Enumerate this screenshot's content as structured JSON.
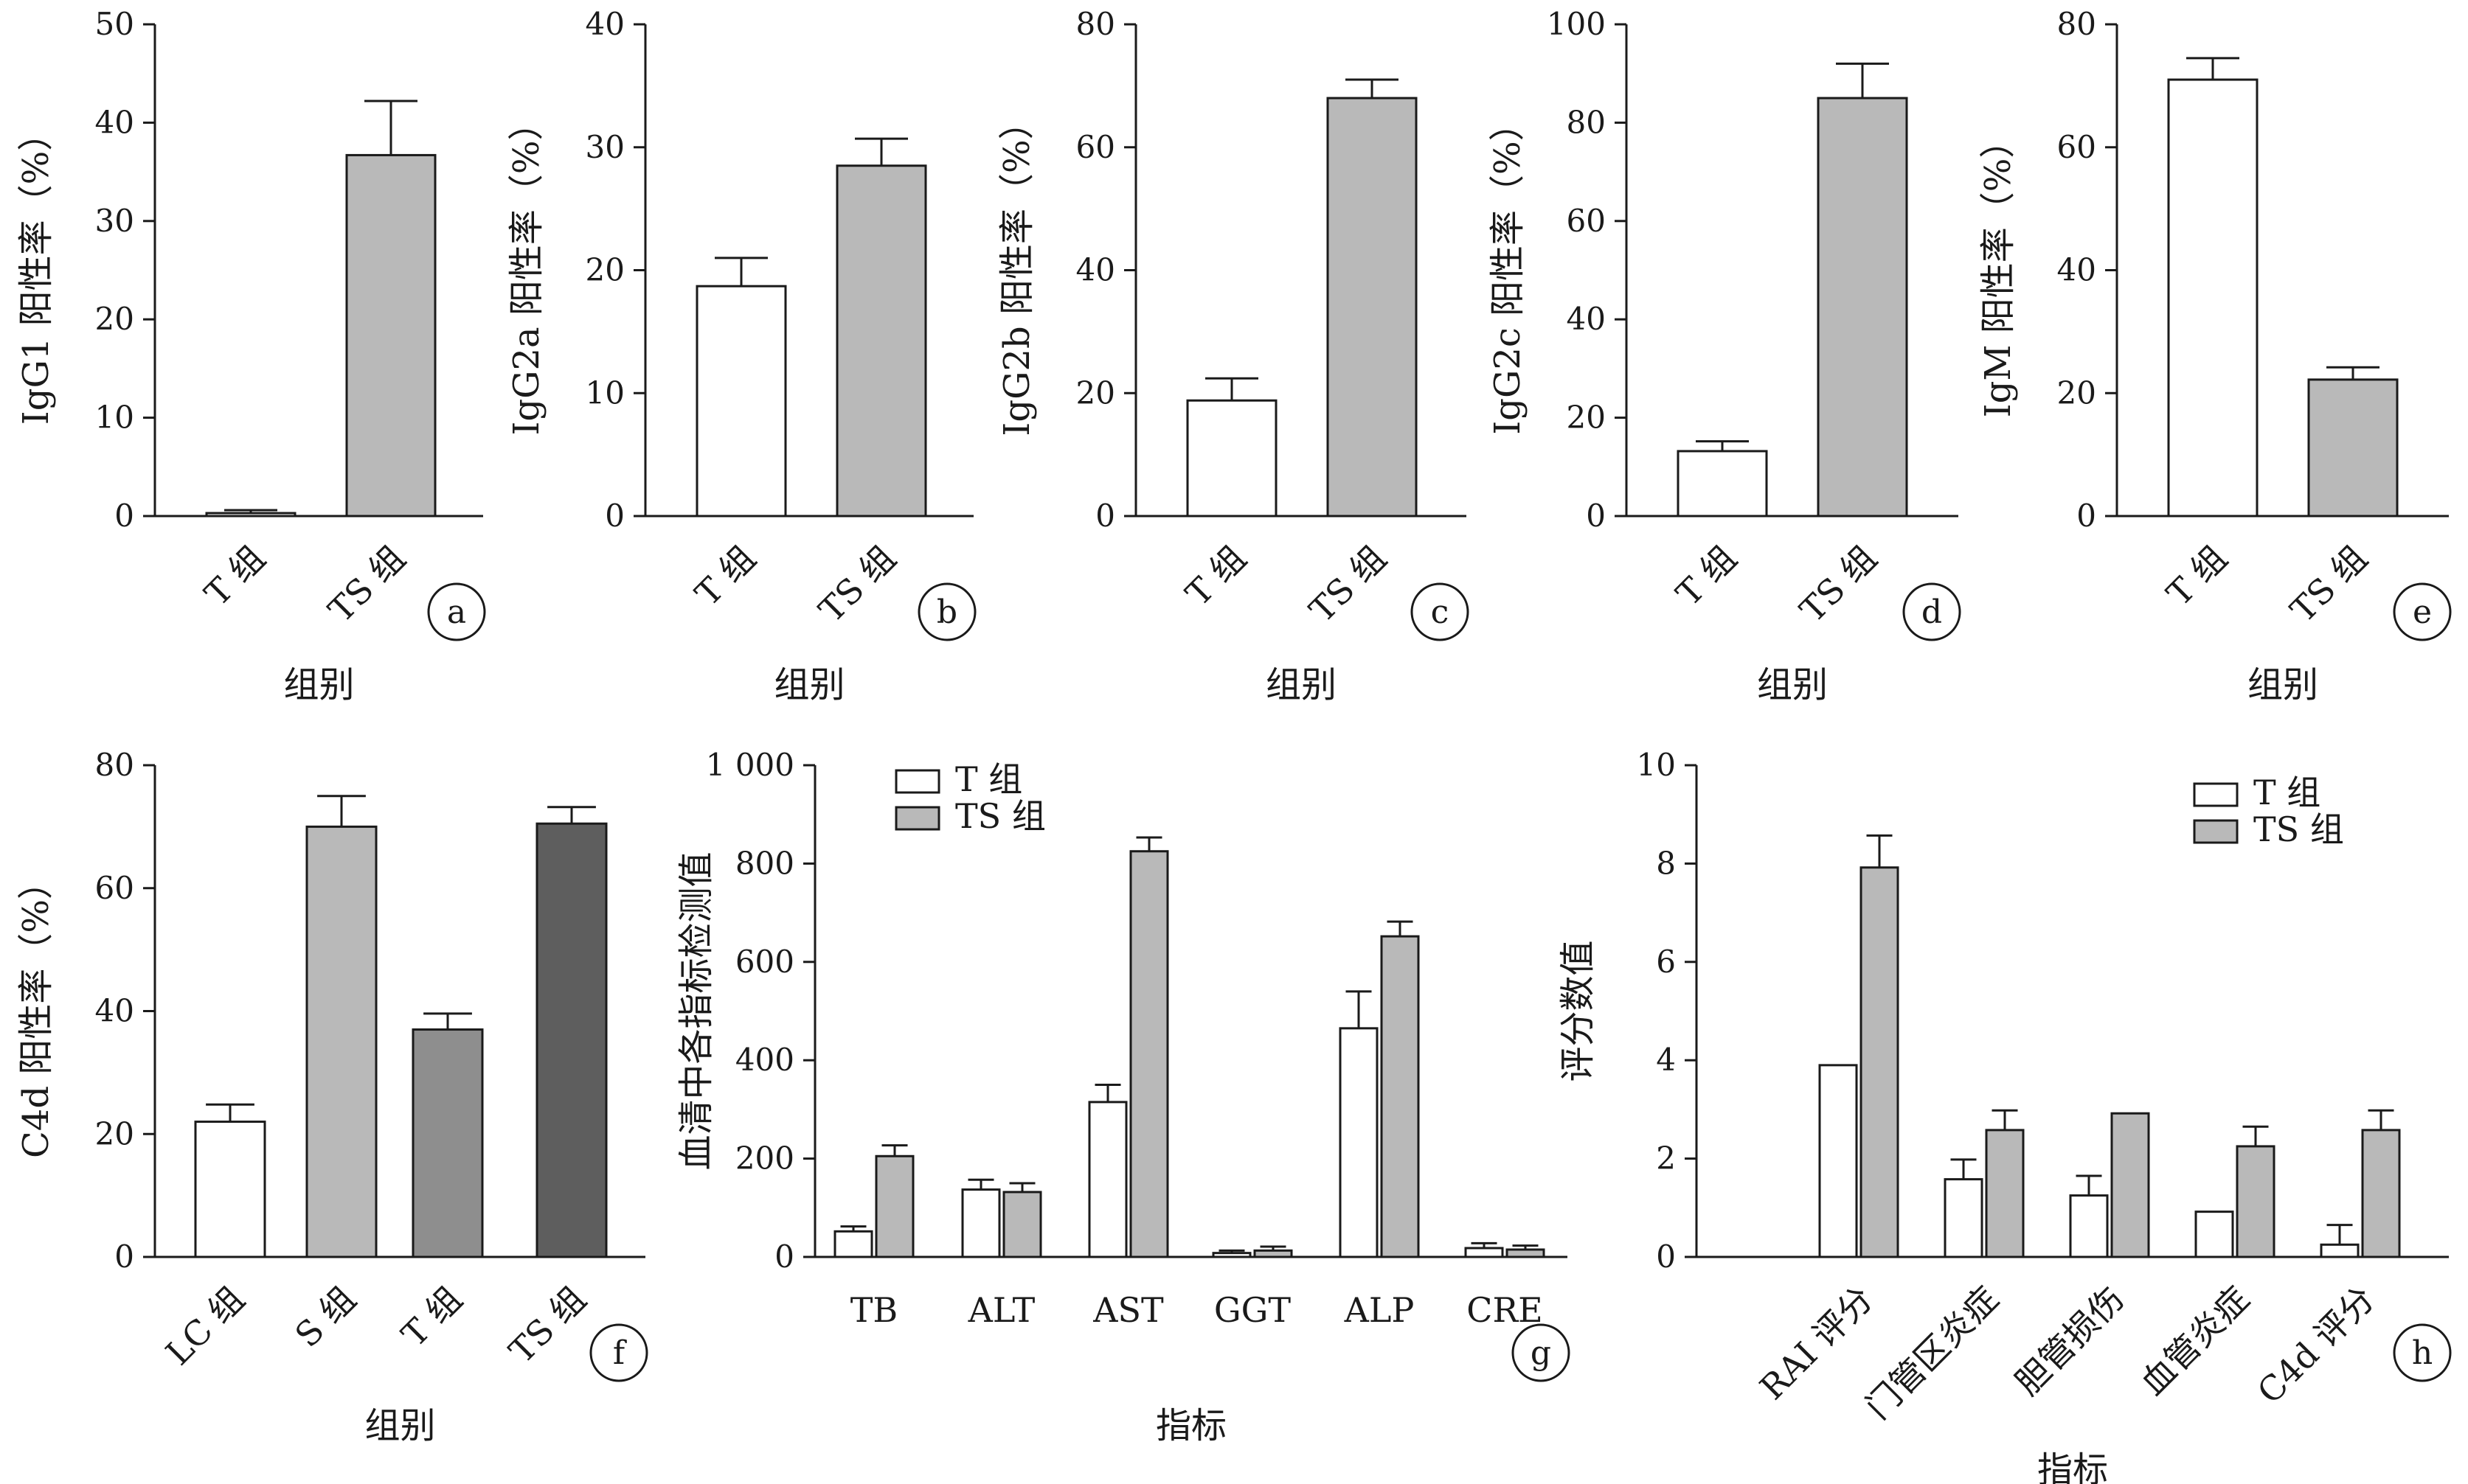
{
  "chart_data": [
    {
      "type": "bar",
      "panel_label": "a",
      "categories": [
        "T 组",
        "TS 组"
      ],
      "values": [
        0.3,
        36.7
      ],
      "errors": [
        0.3,
        5.5
      ],
      "bar_colors": [
        "#ffffff",
        "#b9b9b9"
      ],
      "ylabel": "IgG1 阳性率（%）",
      "xlabel": "组别",
      "ylim": [
        0,
        50
      ],
      "yticks": [
        0,
        10,
        20,
        30,
        40,
        50
      ],
      "ytick_labels": [
        "0",
        "10",
        "20",
        "30",
        "40",
        "50"
      ]
    },
    {
      "type": "bar",
      "panel_label": "b",
      "categories": [
        "T 组",
        "TS 组"
      ],
      "values": [
        18.7,
        28.5
      ],
      "errors": [
        2.3,
        2.2
      ],
      "bar_colors": [
        "#ffffff",
        "#b9b9b9"
      ],
      "ylabel": "IgG2a 阳性率（%）",
      "xlabel": "组别",
      "ylim": [
        0,
        40
      ],
      "yticks": [
        0,
        10,
        20,
        30,
        40
      ],
      "ytick_labels": [
        "0",
        "10",
        "20",
        "30",
        "40"
      ]
    },
    {
      "type": "bar",
      "panel_label": "c",
      "categories": [
        "T 组",
        "TS 组"
      ],
      "values": [
        18.8,
        68.0
      ],
      "errors": [
        3.6,
        3.0
      ],
      "bar_colors": [
        "#ffffff",
        "#b9b9b9"
      ],
      "ylabel": "IgG2b 阳性率（%）",
      "xlabel": "组别",
      "ylim": [
        0,
        80
      ],
      "yticks": [
        0,
        20,
        40,
        60,
        80
      ],
      "ytick_labels": [
        "0",
        "20",
        "40",
        "60",
        "80"
      ]
    },
    {
      "type": "bar",
      "panel_label": "d",
      "categories": [
        "T 组",
        "TS 组"
      ],
      "values": [
        13.2,
        85.0
      ],
      "errors": [
        2.0,
        7.0
      ],
      "bar_colors": [
        "#ffffff",
        "#b9b9b9"
      ],
      "ylabel": "IgG2c 阳性率（%）",
      "xlabel": "组别",
      "ylim": [
        0,
        100
      ],
      "yticks": [
        0,
        20,
        40,
        60,
        80,
        100
      ],
      "ytick_labels": [
        "0",
        "20",
        "40",
        "60",
        "80",
        "100"
      ]
    },
    {
      "type": "bar",
      "panel_label": "e",
      "categories": [
        "T 组",
        "TS 组"
      ],
      "values": [
        71.0,
        22.2
      ],
      "errors": [
        3.5,
        2.0
      ],
      "bar_colors": [
        "#ffffff",
        "#b9b9b9"
      ],
      "ylabel": "IgM 阳性率（%）",
      "xlabel": "组别",
      "ylim": [
        0,
        80
      ],
      "yticks": [
        0,
        20,
        40,
        60,
        80
      ],
      "ytick_labels": [
        "0",
        "20",
        "40",
        "60",
        "80"
      ]
    },
    {
      "type": "bar",
      "panel_label": "f",
      "categories": [
        "LC 组",
        "S 组",
        "T 组",
        "TS 组"
      ],
      "values": [
        22.0,
        70.0,
        37.0,
        70.5
      ],
      "errors": [
        2.8,
        5.0,
        2.6,
        2.7
      ],
      "bar_colors": [
        "#ffffff",
        "#b9b9b9",
        "#8e8e8e",
        "#5e5e5e"
      ],
      "ylabel": "C4d 阳性率（%）",
      "xlabel": "组别",
      "ylim": [
        0,
        80
      ],
      "yticks": [
        0,
        20,
        40,
        60,
        80
      ],
      "ytick_labels": [
        "0",
        "20",
        "40",
        "60",
        "80"
      ]
    },
    {
      "type": "bar",
      "panel_label": "g",
      "categories": [
        "TB",
        "ALT",
        "AST",
        "GGT",
        "ALP",
        "CRE"
      ],
      "series": [
        {
          "name": "T 组",
          "color": "#ffffff",
          "values": [
            52,
            137,
            315,
            8,
            465,
            18
          ],
          "errors": [
            10,
            20,
            35,
            5,
            75,
            10
          ]
        },
        {
          "name": "TS 组",
          "color": "#b9b9b9",
          "values": [
            205,
            132,
            825,
            13,
            652,
            15
          ],
          "errors": [
            22,
            18,
            28,
            8,
            30,
            8
          ]
        }
      ],
      "ylabel": "血清中各指标检测值",
      "xlabel": "指标",
      "ylim": [
        0,
        1000
      ],
      "yticks": [
        0,
        200,
        400,
        600,
        800,
        1000
      ],
      "ytick_labels": [
        "0",
        "200",
        "400",
        "600",
        "800",
        "1 000"
      ],
      "legend_position": "top-left"
    },
    {
      "type": "bar",
      "panel_label": "h",
      "categories": [
        "RAI 评分",
        "门管区炎症",
        "胆管损伤",
        "血管炎症",
        "C4d 评分"
      ],
      "series": [
        {
          "name": "T 组",
          "color": "#ffffff",
          "values": [
            3.9,
            1.58,
            1.25,
            0.92,
            0.25
          ],
          "errors": [
            0,
            0.4,
            0.4,
            0,
            0.4
          ]
        },
        {
          "name": "TS 组",
          "color": "#b9b9b9",
          "values": [
            7.92,
            2.58,
            2.92,
            2.25,
            2.58
          ],
          "errors": [
            0.65,
            0.4,
            0,
            0.4,
            0.4
          ]
        }
      ],
      "ylabel": "评分数值",
      "xlabel": "指标",
      "ylim": [
        0,
        10
      ],
      "yticks": [
        0,
        2,
        4,
        6,
        8,
        10
      ],
      "ytick_labels": [
        "0",
        "2",
        "4",
        "6",
        "8",
        "10"
      ],
      "legend_position": "top-right"
    }
  ]
}
